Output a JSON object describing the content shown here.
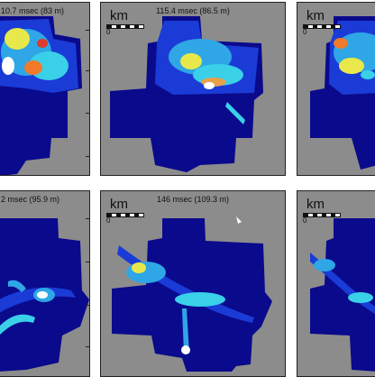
{
  "panels": [
    {
      "title": "10.7 msec (83 m)",
      "scale_label": "",
      "zero_label": ""
    },
    {
      "title": "115.4 msec (86.5 m)",
      "scale_label": "km",
      "zero_label": "0"
    },
    {
      "title": "",
      "scale_label": "km",
      "zero_label": "0"
    },
    {
      "title": "2 msec (95.9 m)",
      "scale_label": "",
      "zero_label": ""
    },
    {
      "title": "146 msec (109.3 m)",
      "scale_label": "km",
      "zero_label": "0"
    },
    {
      "title": "",
      "scale_label": "km",
      "zero_label": "0"
    }
  ]
}
